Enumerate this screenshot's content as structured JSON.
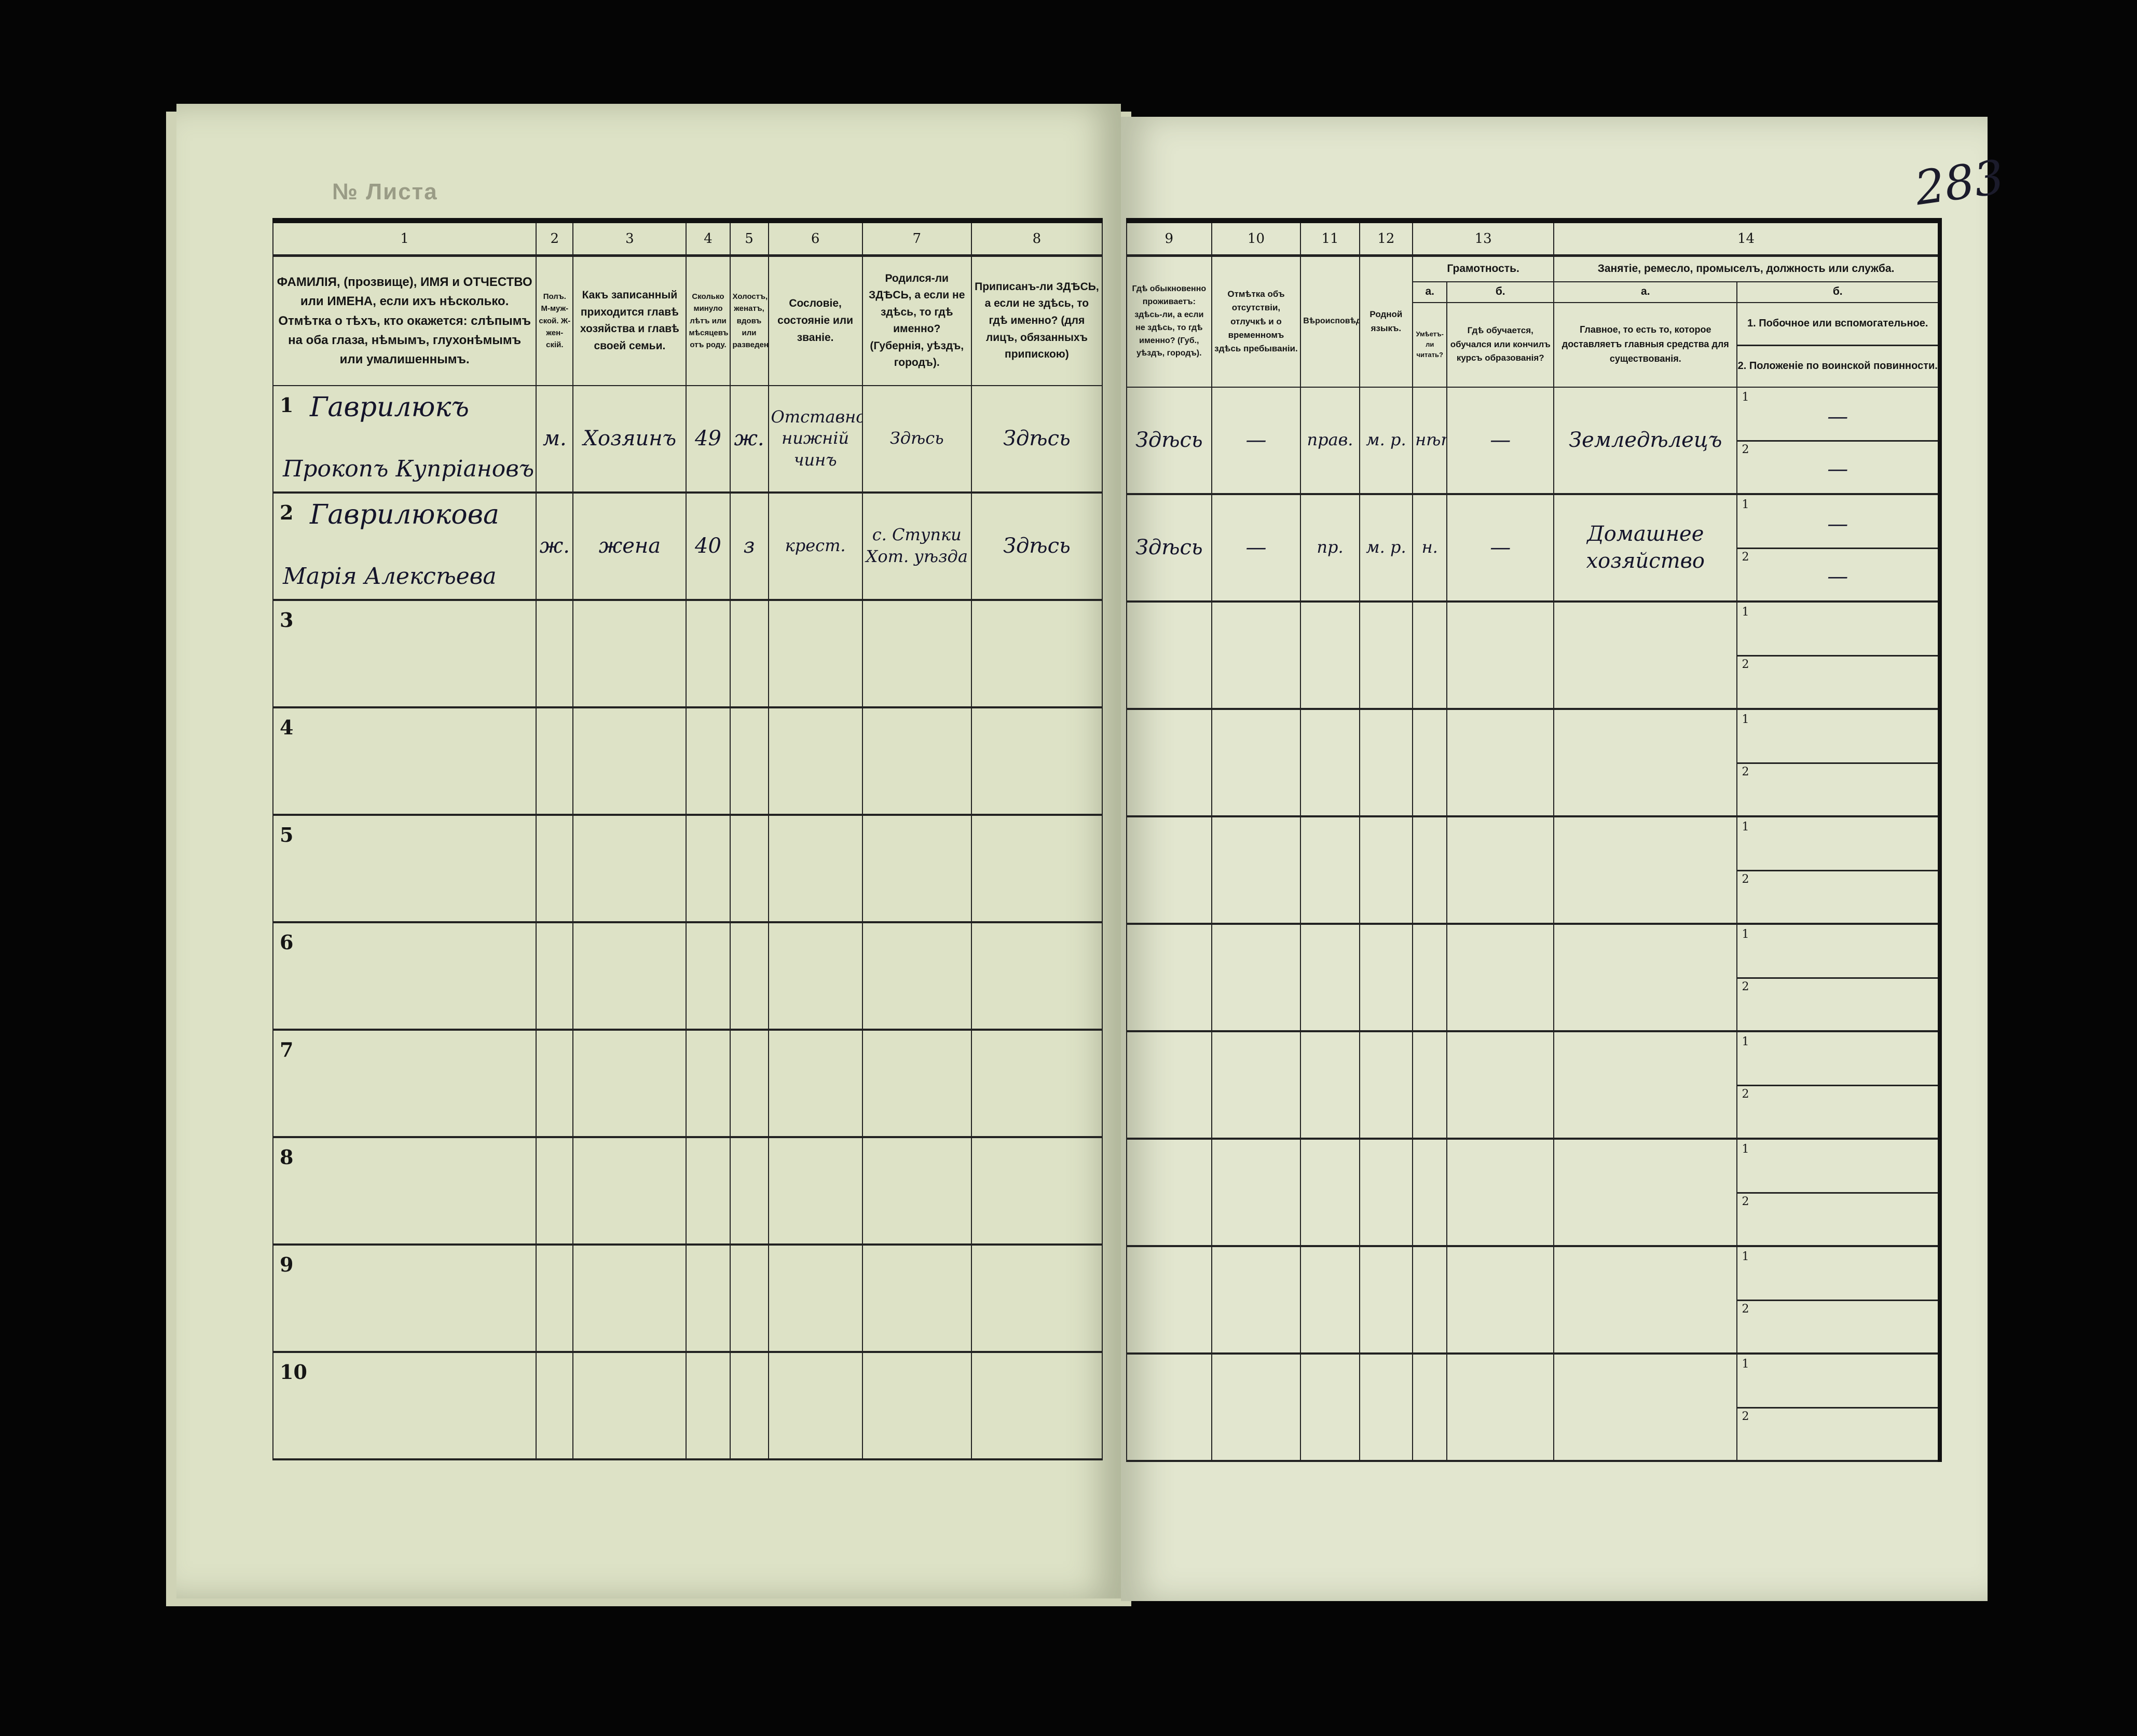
{
  "sheet_label": "№ Листа",
  "page_number": "283",
  "left_headers": {
    "numbers": [
      "1",
      "2",
      "3",
      "4",
      "5",
      "6",
      "7",
      "8"
    ],
    "col1": "ФАМИЛІЯ, (прозвище), ИМЯ и ОТЧЕСТВО или ИМЕНА, если ихъ нѣсколько. Отмѣтка о тѣхъ, кто окажется: слѣпымъ на оба глаза, нѣмымъ, глухонѣмымъ или умалишеннымъ.",
    "col2": "Полъ. М-муж-ской. Ж-жен-скій.",
    "col3": "Какъ записанный приходится главѣ хозяйства и главѣ своей семьи.",
    "col4": "Сколько минуло лѣтъ или мѣсяцевъ отъ роду.",
    "col5": "Холостъ, женатъ, вдовъ или разведенъ.",
    "col6": "Сословіе, состояніе или званіе.",
    "col7": "Родился-ли ЗДѢСЬ, а если не здѣсь, то гдѣ именно? (Губернія, уѣздъ, городъ).",
    "col8": "Приписанъ-ли ЗДѢСЬ, а если не здѣсь, то гдѣ именно? (для лицъ, обязанныхъ припискою)"
  },
  "right_headers": {
    "numbers": [
      "9",
      "10",
      "11",
      "12",
      "13",
      "14"
    ],
    "col9": "Гдѣ обыкновенно проживаетъ: здѣсь-ли, а если не здѣсь, то гдѣ именно? (Губ., уѣздъ, городъ).",
    "col10": "Отмѣтка объ отсутствіи, отлучкѣ и о временномъ здѣсь пребываніи.",
    "col11": "Вѣроисповѣданіе.",
    "col12": "Родной языкъ.",
    "col13": "Грамотность.",
    "col13a_letter": "а.",
    "col13a": "Умѣетъ-ли читать?",
    "col13b_letter": "б.",
    "col13b": "Гдѣ обучается, обучался или кончилъ курсъ образованія?",
    "col14": "Занятіе, ремесло, промыселъ, должность или служба.",
    "col14a_letter": "а.",
    "col14a": "Главное, то есть то, которое доставляетъ главныя средства для существованія.",
    "col14b_letter": "б.",
    "col14b_1": "1. Побочное или вспомогательное.",
    "col14b_2": "2. Положеніе по воинской повинности."
  },
  "sub_labels": [
    "1",
    "2"
  ],
  "rows": [
    {
      "num": "1",
      "surname": "Гаврилюкъ",
      "given": "Прокопъ Купріановъ",
      "sex": "м.",
      "relation": "Хозяинъ",
      "age": "49",
      "marital": "ж.",
      "estate": "Отставной нижній чинъ",
      "born": "Здѣсь",
      "registered": "Здѣсь",
      "residence": "Здѣсь",
      "absence": "—",
      "religion": "прав.",
      "language": "м. р.",
      "literacy": "нѣтъ",
      "education": "—",
      "occupation": "Земледѣлецъ",
      "secondary": "—",
      "military": "—"
    },
    {
      "num": "2",
      "surname": "Гаврилюкова",
      "given": "Марія Алексѣева",
      "sex": "ж.",
      "relation": "жена",
      "age": "40",
      "marital": "з",
      "estate": "крест.",
      "born": "с. Ступки Хот. уѣзда",
      "registered": "Здѣсь",
      "residence": "Здѣсь",
      "absence": "—",
      "religion": "пр.",
      "language": "м. р.",
      "literacy": "н.",
      "education": "—",
      "occupation": "Домашнее хозяйство",
      "secondary": "—",
      "military": "—"
    },
    {
      "num": "3"
    },
    {
      "num": "4"
    },
    {
      "num": "5"
    },
    {
      "num": "6"
    },
    {
      "num": "7"
    },
    {
      "num": "8"
    },
    {
      "num": "9"
    },
    {
      "num": "10"
    }
  ]
}
